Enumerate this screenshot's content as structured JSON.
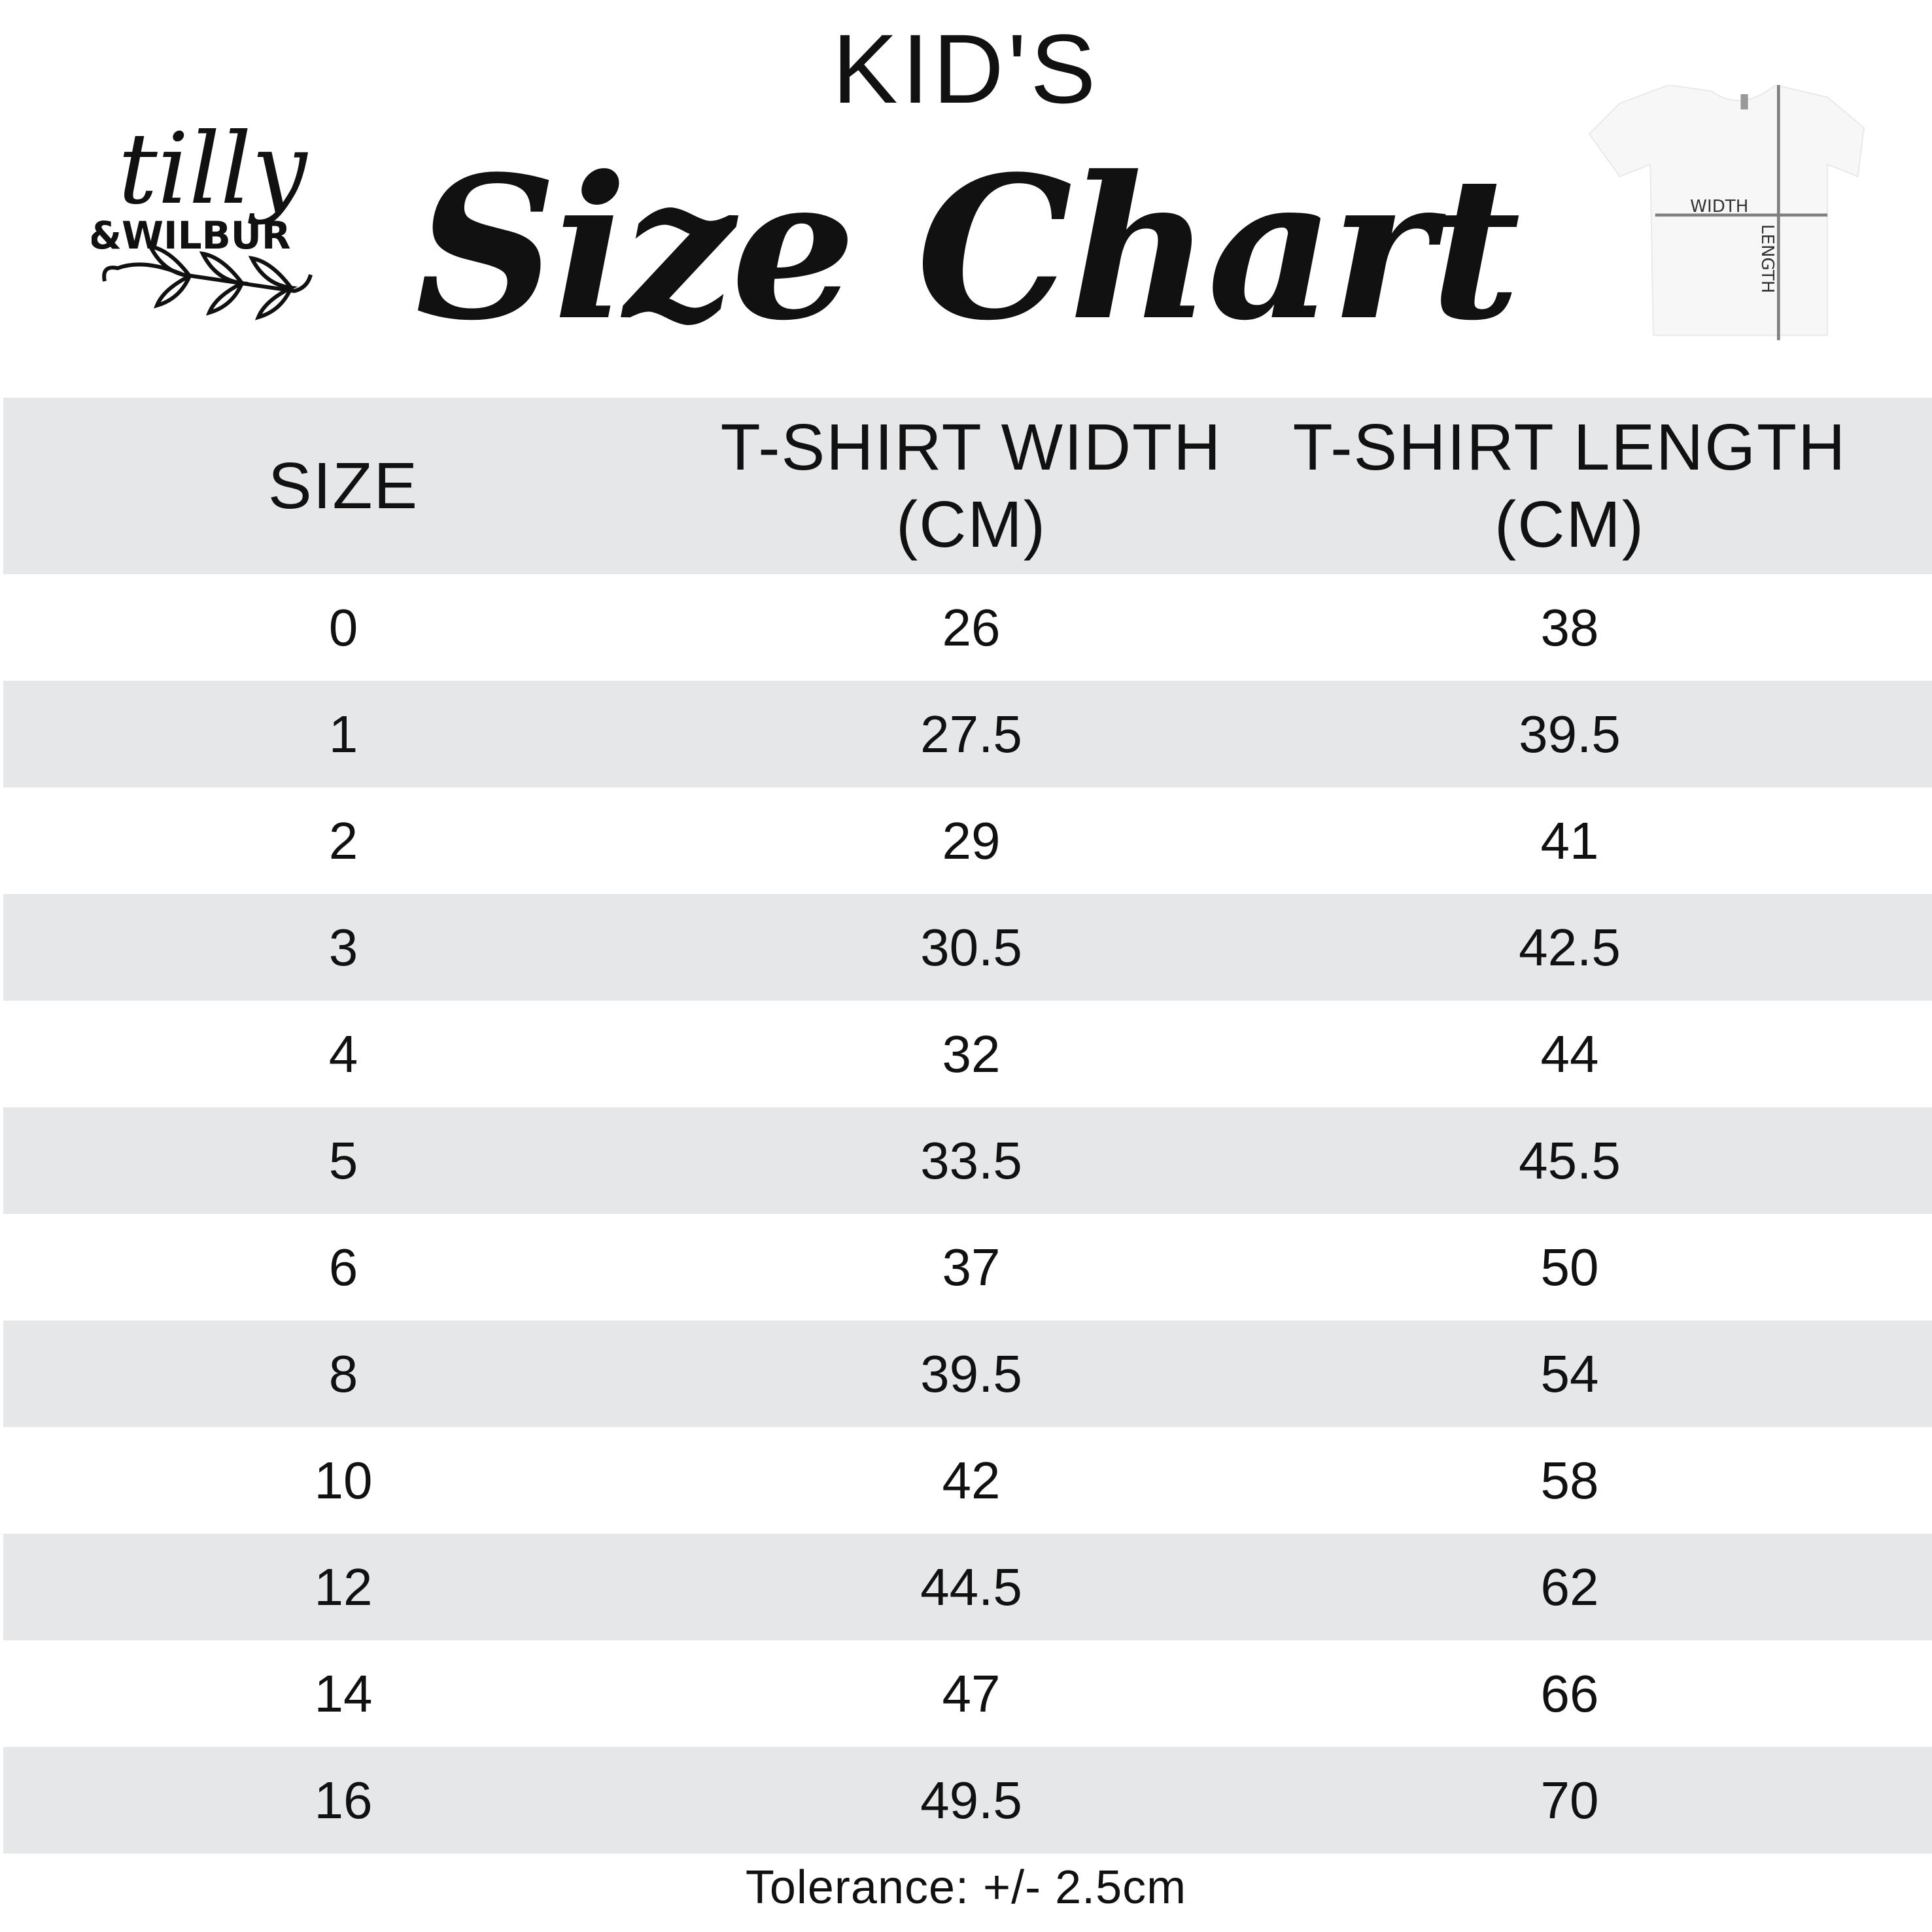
{
  "brand": {
    "logo_text_1": "tilly",
    "logo_text_2": "&WILBUR"
  },
  "header": {
    "subtitle": "KID'S",
    "title": "Size Chart"
  },
  "diagram": {
    "width_label": "WIDTH",
    "length_label": "LENGTH",
    "line_color": "#808080"
  },
  "table": {
    "columns": [
      "SIZE",
      "T-SHIRT WIDTH (CM)",
      "T-SHIRT LENGTH (CM)"
    ],
    "rows": [
      [
        "0",
        "26",
        "38"
      ],
      [
        "1",
        "27.5",
        "39.5"
      ],
      [
        "2",
        "29",
        "41"
      ],
      [
        "3",
        "30.5",
        "42.5"
      ],
      [
        "4",
        "32",
        "44"
      ],
      [
        "5",
        "33.5",
        "45.5"
      ],
      [
        "6",
        "37",
        "50"
      ],
      [
        "8",
        "39.5",
        "54"
      ],
      [
        "10",
        "42",
        "58"
      ],
      [
        "12",
        "44.5",
        "62"
      ],
      [
        "14",
        "47",
        "66"
      ],
      [
        "16",
        "49.5",
        "70"
      ]
    ],
    "band_color": "#e6e7e9"
  },
  "footer": {
    "tolerance": "Tolerance: +/- 2.5cm"
  }
}
